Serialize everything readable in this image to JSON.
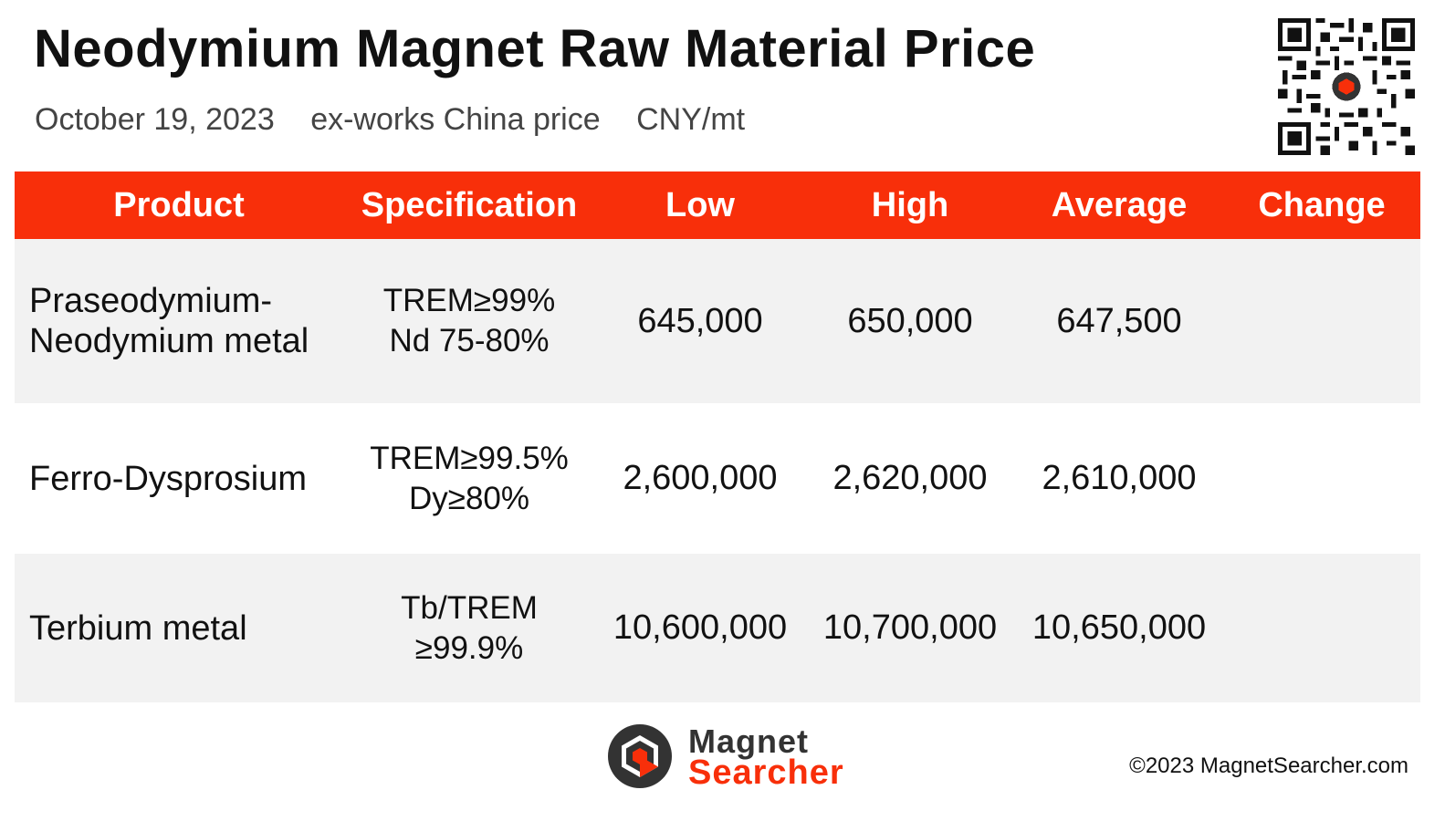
{
  "header": {
    "title": "Neodymium Magnet Raw Material Price",
    "date": "October 19, 2023",
    "basis": "ex-works China price",
    "unit": "CNY/mt"
  },
  "table": {
    "columns": [
      "Product",
      "Specification",
      "Low",
      "High",
      "Average",
      "Change"
    ],
    "rows": [
      {
        "product": [
          "Praseodymium-",
          "Neodymium metal"
        ],
        "spec": [
          "TREM≥99%",
          "Nd 75-80%"
        ],
        "low": "645,000",
        "high": "650,000",
        "average": "647,500",
        "change": ""
      },
      {
        "product": [
          "Ferro-Dysprosium",
          ""
        ],
        "spec": [
          "TREM≥99.5%",
          "Dy≥80%"
        ],
        "low": "2,600,000",
        "high": "2,620,000",
        "average": "2,610,000",
        "change": ""
      },
      {
        "product": [
          "Terbium metal",
          ""
        ],
        "spec": [
          "Tb/TREM",
          "≥99.9%"
        ],
        "low": "10,600,000",
        "high": "10,700,000",
        "average": "10,650,000",
        "change": ""
      }
    ]
  },
  "footer": {
    "logo_line1": "Magnet",
    "logo_line2": "Searcher",
    "copyright": "©2023 MagnetSearcher.com"
  },
  "colors": {
    "accent": "#f82f0a",
    "row_shade": "#f2f2f2",
    "text": "#111111"
  },
  "icons": {
    "qr": "qr-code-icon",
    "logo": "magnet-searcher-logo"
  }
}
